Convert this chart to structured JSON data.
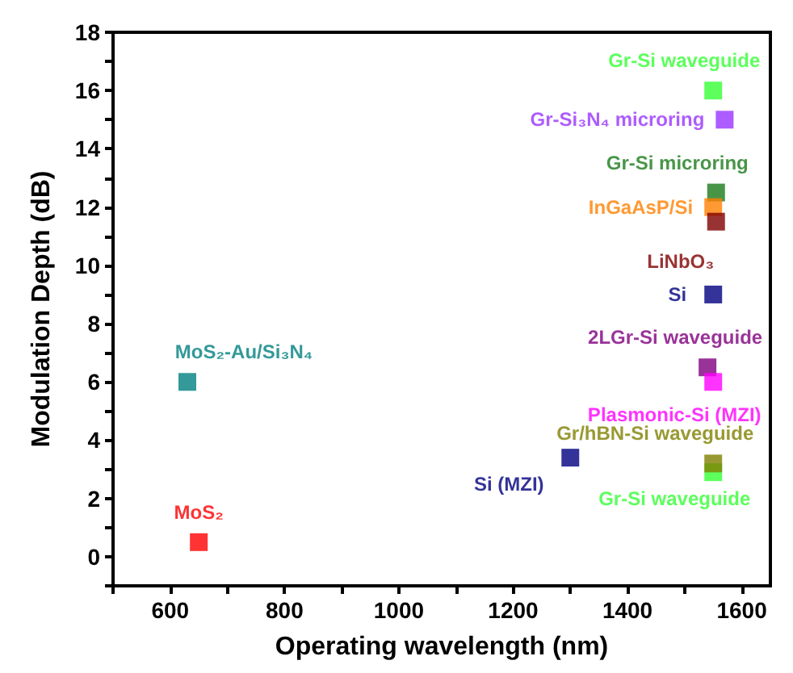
{
  "chart_data": {
    "type": "scatter",
    "xlabel": "Operating wavelength (nm)",
    "ylabel": "Modulation Depth (dB)",
    "xlim": [
      500,
      1650
    ],
    "xticks": [
      600,
      800,
      1000,
      1200,
      1400,
      1600
    ],
    "ylim": [
      -1,
      18
    ],
    "yticks": [
      0,
      2,
      4,
      6,
      8,
      10,
      12,
      14,
      16,
      18
    ],
    "grid": false,
    "legend": false,
    "marker": "square",
    "series": [
      {
        "name": "Gr-Si waveguide",
        "color": "#33ff33",
        "x": [
          1550
        ],
        "values": [
          16
        ]
      },
      {
        "name": "Gr-Si₃N₄ microring",
        "color": "#9933ff",
        "x": [
          1570
        ],
        "values": [
          15
        ]
      },
      {
        "name": "Gr-Si microring",
        "color": "#1a7a1a",
        "x": [
          1555
        ],
        "values": [
          12.5
        ]
      },
      {
        "name": "InGaAsP/Si",
        "color": "#ff8000",
        "x": [
          1550
        ],
        "values": [
          12
        ]
      },
      {
        "name": "LiNbO₃",
        "color": "#800000",
        "x": [
          1555
        ],
        "values": [
          11.5
        ]
      },
      {
        "name": "Si",
        "color": "#000080",
        "x": [
          1550
        ],
        "values": [
          9
        ]
      },
      {
        "name": "2LGr-Si waveguide",
        "color": "#800080",
        "x": [
          1540
        ],
        "values": [
          6.5
        ]
      },
      {
        "name": "Plasmonic-Si (MZI)",
        "color": "#ff00ff",
        "x": [
          1550
        ],
        "values": [
          6
        ]
      },
      {
        "name": "Gr/hBN-Si waveguide",
        "color": "#808000",
        "x": [
          1550
        ],
        "values": [
          3.2
        ]
      },
      {
        "name": "Gr-Si waveguide",
        "color": "#33ff33",
        "x": [
          1550
        ],
        "values": [
          2.9
        ]
      },
      {
        "name": "Si (MZI)",
        "color": "#000080",
        "x": [
          1300
        ],
        "values": [
          3.4
        ]
      },
      {
        "name": "MoS₂-Au/Si₃N₄",
        "color": "#008080",
        "x": [
          630
        ],
        "values": [
          6
        ]
      },
      {
        "name": "MoS₂",
        "color": "#ff0000",
        "x": [
          650
        ],
        "values": [
          0.5
        ]
      }
    ]
  }
}
